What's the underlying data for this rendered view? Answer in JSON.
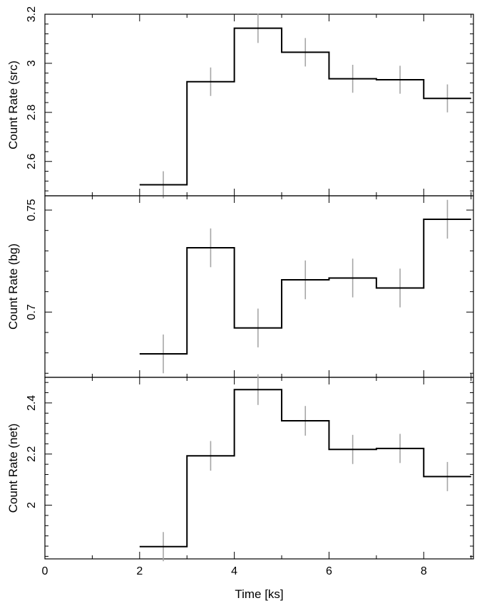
{
  "chart_data": [
    {
      "type": "line",
      "step": true,
      "ylabel": "Count Rate (src)",
      "xlim": [
        0,
        9.05
      ],
      "ylim": [
        2.46,
        3.2
      ],
      "yticks": [
        2.6,
        2.8,
        3,
        3.2
      ],
      "ytick_labels": [
        "2.6",
        "2.8",
        "3",
        "3.2"
      ],
      "x": [
        2.5,
        3.5,
        4.5,
        5.5,
        6.5,
        7.5,
        8.5
      ],
      "xerr": 0.5,
      "values": [
        2.505,
        2.925,
        3.143,
        3.045,
        2.937,
        2.933,
        2.857
      ],
      "yerr": [
        0.055,
        0.058,
        0.06,
        0.058,
        0.057,
        0.057,
        0.057
      ],
      "line_color": "#000000",
      "error_color": "#a6a6a6"
    },
    {
      "type": "line",
      "step": true,
      "ylabel": "Count Rate (bg)",
      "xlim": [
        0,
        9.05
      ],
      "ylim": [
        0.668,
        0.757
      ],
      "yticks": [
        0.7,
        0.75
      ],
      "ytick_labels": [
        "0.7",
        "0.75"
      ],
      "x": [
        2.5,
        3.5,
        4.5,
        5.5,
        6.5,
        7.5,
        8.5
      ],
      "xerr": 0.5,
      "values": [
        0.6795,
        0.7315,
        0.6922,
        0.7158,
        0.7167,
        0.7118,
        0.7455
      ],
      "yerr": [
        0.0095,
        0.0095,
        0.0095,
        0.0095,
        0.0095,
        0.0095,
        0.0095
      ],
      "line_color": "#000000",
      "error_color": "#a6a6a6"
    },
    {
      "type": "line",
      "step": true,
      "ylabel": "Count Rate (net)",
      "xlabel": "Time [ks]",
      "xlim": [
        0,
        9.05
      ],
      "ylim": [
        1.79,
        2.5
      ],
      "yticks": [
        2,
        2.2,
        2.4
      ],
      "ytick_labels": [
        "2",
        "2.2",
        "2.4"
      ],
      "xticks": [
        0,
        2,
        4,
        6,
        8
      ],
      "xtick_labels": [
        "0",
        "2",
        "4",
        "6",
        "8"
      ],
      "x": [
        2.5,
        3.5,
        4.5,
        5.5,
        6.5,
        7.5,
        8.5
      ],
      "xerr": 0.5,
      "values": [
        1.838,
        2.193,
        2.452,
        2.33,
        2.218,
        2.222,
        2.112
      ],
      "yerr": [
        0.057,
        0.058,
        0.06,
        0.058,
        0.057,
        0.057,
        0.057
      ],
      "line_color": "#000000",
      "error_color": "#a6a6a6"
    }
  ]
}
